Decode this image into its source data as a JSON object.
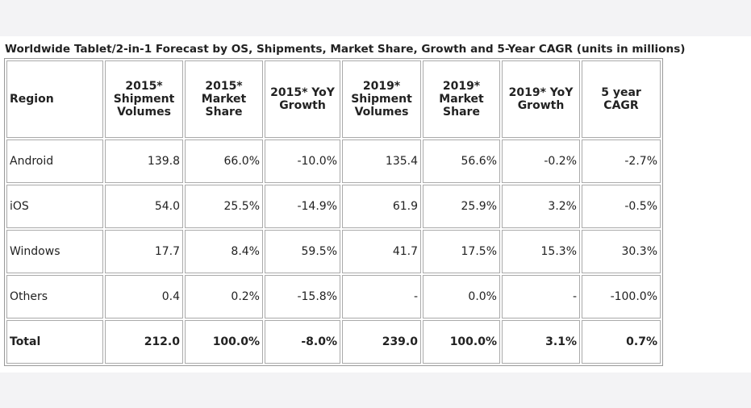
{
  "title": "Worldwide Tablet/2-in-1 Forecast by OS, Shipments, Market Share, Growth and 5-Year CAGR (units in millions)",
  "table": {
    "header": [
      "Region",
      "2015* Shipment Volumes",
      "2015* Market Share",
      "2015* YoY Growth",
      "2019* Shipment Volumes",
      "2019* Market Share",
      "2019* YoY Growth",
      "5 year CAGR"
    ],
    "rows": [
      [
        "Android",
        "139.8",
        "66.0%",
        "-10.0%",
        "135.4",
        "56.6%",
        "-0.2%",
        "-2.7%"
      ],
      [
        "iOS",
        "54.0",
        "25.5%",
        "-14.9%",
        "61.9",
        "25.9%",
        "3.2%",
        "-0.5%"
      ],
      [
        "Windows",
        "17.7",
        "8.4%",
        "59.5%",
        "41.7",
        "17.5%",
        "15.3%",
        "30.3%"
      ],
      [
        "Others",
        "0.4",
        "0.2%",
        "-15.8%",
        "-",
        "0.0%",
        "-",
        "-100.0%"
      ],
      [
        "Total",
        "212.0",
        "100.0%",
        "-8.0%",
        "239.0",
        "100.0%",
        "3.1%",
        "0.7%"
      ]
    ]
  }
}
